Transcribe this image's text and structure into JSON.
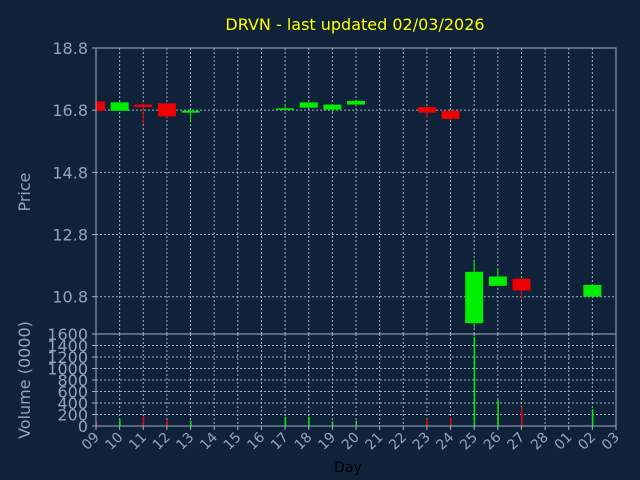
{
  "title": "DRVN - last updated 02/03/2026",
  "colors": {
    "background": "#0f223a",
    "plot_background": "#0f223a",
    "grid": "#9fb0c8",
    "axis_text": "#8ea5c3",
    "title": "#ffff00",
    "up": "#00ee00",
    "down": "#ee0000",
    "frame": "#9fb0c8"
  },
  "chart_data": [
    {
      "type": "candlestick",
      "ylabel": "Price",
      "ylim": [
        9.6,
        18.8
      ],
      "yticks": [
        18.8,
        16.8,
        14.8,
        12.8,
        10.8
      ],
      "x_range": [
        0,
        22
      ],
      "grid": true,
      "candles": [
        {
          "x": 0.0,
          "open": 17.08,
          "high": 17.08,
          "low": 16.75,
          "close": 16.78
        },
        {
          "x": 1.0,
          "open": 16.78,
          "high": 17.05,
          "low": 16.78,
          "close": 17.05
        },
        {
          "x": 2.0,
          "open": 16.98,
          "high": 17.02,
          "low": 16.35,
          "close": 16.9
        },
        {
          "x": 3.0,
          "open": 17.02,
          "high": 17.02,
          "low": 16.52,
          "close": 16.6
        },
        {
          "x": 4.0,
          "open": 16.72,
          "high": 16.82,
          "low": 16.4,
          "close": 16.78
        },
        {
          "x": 8.0,
          "open": 16.82,
          "high": 16.98,
          "low": 16.78,
          "close": 16.86
        },
        {
          "x": 9.0,
          "open": 16.88,
          "high": 17.05,
          "low": 16.88,
          "close": 17.05
        },
        {
          "x": 10.0,
          "open": 16.82,
          "high": 17.0,
          "low": 16.72,
          "close": 16.98
        },
        {
          "x": 11.0,
          "open": 16.98,
          "high": 17.1,
          "low": 16.92,
          "close": 17.1
        },
        {
          "x": 14.0,
          "open": 16.9,
          "high": 16.92,
          "low": 16.55,
          "close": 16.72
        },
        {
          "x": 15.0,
          "open": 16.78,
          "high": 16.78,
          "low": 16.48,
          "close": 16.52
        },
        {
          "x": 16.0,
          "open": 9.95,
          "high": 12.0,
          "low": 9.8,
          "close": 11.6
        },
        {
          "x": 17.0,
          "open": 11.15,
          "high": 11.7,
          "low": 11.15,
          "close": 11.45
        },
        {
          "x": 18.0,
          "open": 11.38,
          "high": 11.4,
          "low": 10.7,
          "close": 11.0
        },
        {
          "x": 21.0,
          "open": 10.8,
          "high": 11.2,
          "low": 10.8,
          "close": 11.18
        }
      ]
    },
    {
      "type": "bar",
      "xlabel": "Day",
      "ylabel": "Volume (0000)",
      "ylim": [
        0,
        1600
      ],
      "yticks": [
        1600,
        1400,
        1200,
        1000,
        800,
        600,
        400,
        200,
        0
      ],
      "x_range": [
        0,
        22
      ],
      "xticks": [
        "09",
        "10",
        "11",
        "12",
        "13",
        "14",
        "15",
        "16",
        "17",
        "18",
        "19",
        "20",
        "21",
        "22",
        "23",
        "24",
        "25",
        "26",
        "27",
        "28",
        "01",
        "02",
        "03"
      ],
      "grid": true,
      "bars": [
        {
          "x": 0.0,
          "value": 70,
          "dir": "down"
        },
        {
          "x": 1.0,
          "value": 110,
          "dir": "up"
        },
        {
          "x": 2.0,
          "value": 170,
          "dir": "down"
        },
        {
          "x": 3.0,
          "value": 110,
          "dir": "down"
        },
        {
          "x": 4.0,
          "value": 90,
          "dir": "up"
        },
        {
          "x": 8.0,
          "value": 160,
          "dir": "up"
        },
        {
          "x": 9.0,
          "value": 160,
          "dir": "up"
        },
        {
          "x": 10.0,
          "value": 80,
          "dir": "up"
        },
        {
          "x": 11.0,
          "value": 90,
          "dir": "up"
        },
        {
          "x": 14.0,
          "value": 120,
          "dir": "down"
        },
        {
          "x": 15.0,
          "value": 150,
          "dir": "down"
        },
        {
          "x": 16.0,
          "value": 1550,
          "dir": "up"
        },
        {
          "x": 17.0,
          "value": 450,
          "dir": "up"
        },
        {
          "x": 18.0,
          "value": 330,
          "dir": "down"
        },
        {
          "x": 21.0,
          "value": 290,
          "dir": "up"
        }
      ]
    }
  ]
}
